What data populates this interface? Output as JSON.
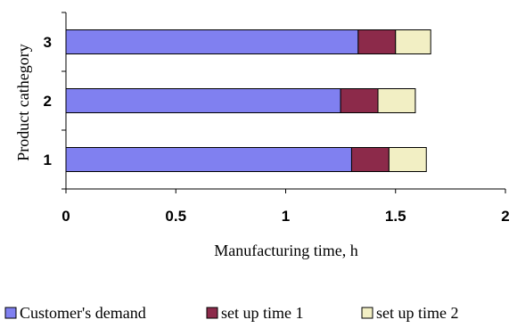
{
  "chart_data": {
    "type": "bar",
    "orientation": "horizontal",
    "stacked": true,
    "categories": [
      "1",
      "2",
      "3"
    ],
    "series": [
      {
        "name": "Customer's demand",
        "values": [
          1.3,
          1.25,
          1.33
        ],
        "color": "#8080f0"
      },
      {
        "name": "set up time 1",
        "values": [
          0.17,
          0.17,
          0.17
        ],
        "color": "#8c2a4a"
      },
      {
        "name": "set up time 2",
        "values": [
          0.17,
          0.17,
          0.16
        ],
        "color": "#f2efc4"
      }
    ],
    "xlabel": "Manufacturing time, h",
    "ylabel": "Product cathegory",
    "xlim": [
      0,
      2
    ],
    "xticks": [
      "0",
      "0.5",
      "1",
      "1.5",
      "2"
    ],
    "grid": false,
    "legend_position": "bottom"
  }
}
